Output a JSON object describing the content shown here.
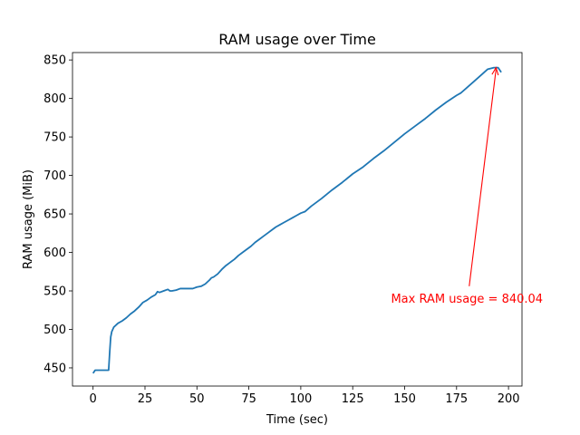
{
  "chart_data": {
    "type": "line",
    "title": "RAM usage over Time",
    "xlabel": "Time (sec)",
    "ylabel": "RAM usage (MiB)",
    "xlim": [
      -9.9,
      206.5
    ],
    "ylim": [
      426.4,
      859.6
    ],
    "xticks": [
      0,
      25,
      50,
      75,
      100,
      125,
      150,
      175,
      200
    ],
    "yticks": [
      450,
      500,
      550,
      600,
      650,
      700,
      750,
      800,
      850
    ],
    "grid": false,
    "legend": "none",
    "series": [
      {
        "color": "#1f77b4",
        "x": [
          0,
          1,
          2,
          4,
          6,
          7.5,
          8,
          8.5,
          9,
          10,
          12,
          14,
          16,
          18,
          20,
          22,
          24,
          26,
          28,
          30,
          31,
          32,
          34,
          36,
          37,
          38,
          40,
          42,
          44,
          46,
          48,
          50,
          52,
          54,
          56,
          57,
          58,
          60,
          62,
          64,
          66,
          68,
          70,
          72,
          74,
          76,
          78,
          80,
          82,
          84,
          86,
          88,
          90,
          92,
          94,
          96,
          98,
          100,
          102,
          105,
          110,
          115,
          120,
          125,
          130,
          135,
          140,
          145,
          150,
          155,
          160,
          165,
          170,
          175,
          177,
          180,
          185,
          190,
          193,
          195,
          196.5
        ],
        "y": [
          443,
          447,
          447,
          447,
          447,
          447,
          470,
          490,
          497,
          503,
          508,
          511,
          515,
          520,
          524,
          529,
          535,
          538,
          542,
          545,
          549,
          548,
          550,
          552,
          550,
          550,
          551,
          553,
          553,
          553,
          553,
          555,
          556,
          559,
          564,
          567,
          568,
          572,
          578,
          583,
          587,
          591,
          596,
          600,
          604,
          608,
          613,
          617,
          621,
          625,
          629,
          633,
          636,
          639,
          642,
          645,
          648,
          651,
          653,
          660,
          670,
          681,
          691,
          702,
          711,
          722,
          732,
          743,
          754,
          764,
          774,
          785,
          795,
          804,
          807,
          814,
          826,
          838,
          840.04,
          840,
          834
        ]
      }
    ],
    "annotations": [
      {
        "text": "Max RAM usage = 840.04",
        "color": "#ff0000",
        "x": 194,
        "y": 840.04,
        "text_x": 180,
        "text_y": 542
      }
    ]
  }
}
